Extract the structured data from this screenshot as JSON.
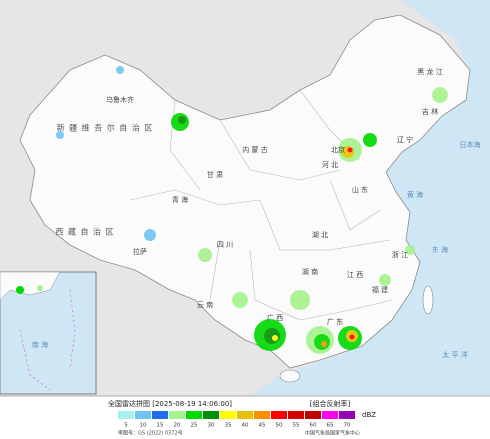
{
  "header": {
    "title": "全国雷达拼图 [2025-08-19 14:06:00]",
    "product": "[组合反射率]"
  },
  "legend": {
    "unit": "dBZ",
    "levels": [
      {
        "value": 5,
        "color": "#a8f0f0"
      },
      {
        "value": 10,
        "color": "#6fc4f4"
      },
      {
        "value": 15,
        "color": "#1e6ef0"
      },
      {
        "value": 20,
        "color": "#a6f28e"
      },
      {
        "value": 25,
        "color": "#00d800"
      },
      {
        "value": 30,
        "color": "#009000"
      },
      {
        "value": 35,
        "color": "#ffff00"
      },
      {
        "value": 40,
        "color": "#e7c000"
      },
      {
        "value": 45,
        "color": "#ff9000"
      },
      {
        "value": 50,
        "color": "#ff0000"
      },
      {
        "value": 55,
        "color": "#d60000"
      },
      {
        "value": 60,
        "color": "#c00000"
      },
      {
        "value": 65,
        "color": "#ff00f0"
      },
      {
        "value": 70,
        "color": "#9600b4"
      }
    ]
  },
  "footer": {
    "approval": "审图号：GS (2022) 0372号",
    "agency": "中国气象局国家气象中心"
  },
  "labels": [
    "新 疆 维 吾 尔 自 治 区",
    "西 藏 自 治 区",
    "青 海",
    "内 蒙 古",
    "黑 龙 江",
    "吉 林",
    "辽 宁",
    "甘 肃",
    "四 川",
    "云 南",
    "广 西",
    "广 东",
    "湖 南",
    "湖 北",
    "江 西",
    "福 建",
    "浙 江",
    "山 东",
    "河 北",
    "北京",
    "太 平 洋",
    "东 海",
    "黄 海",
    "南 海",
    "乌鲁木齐",
    "拉萨",
    "日本海"
  ]
}
